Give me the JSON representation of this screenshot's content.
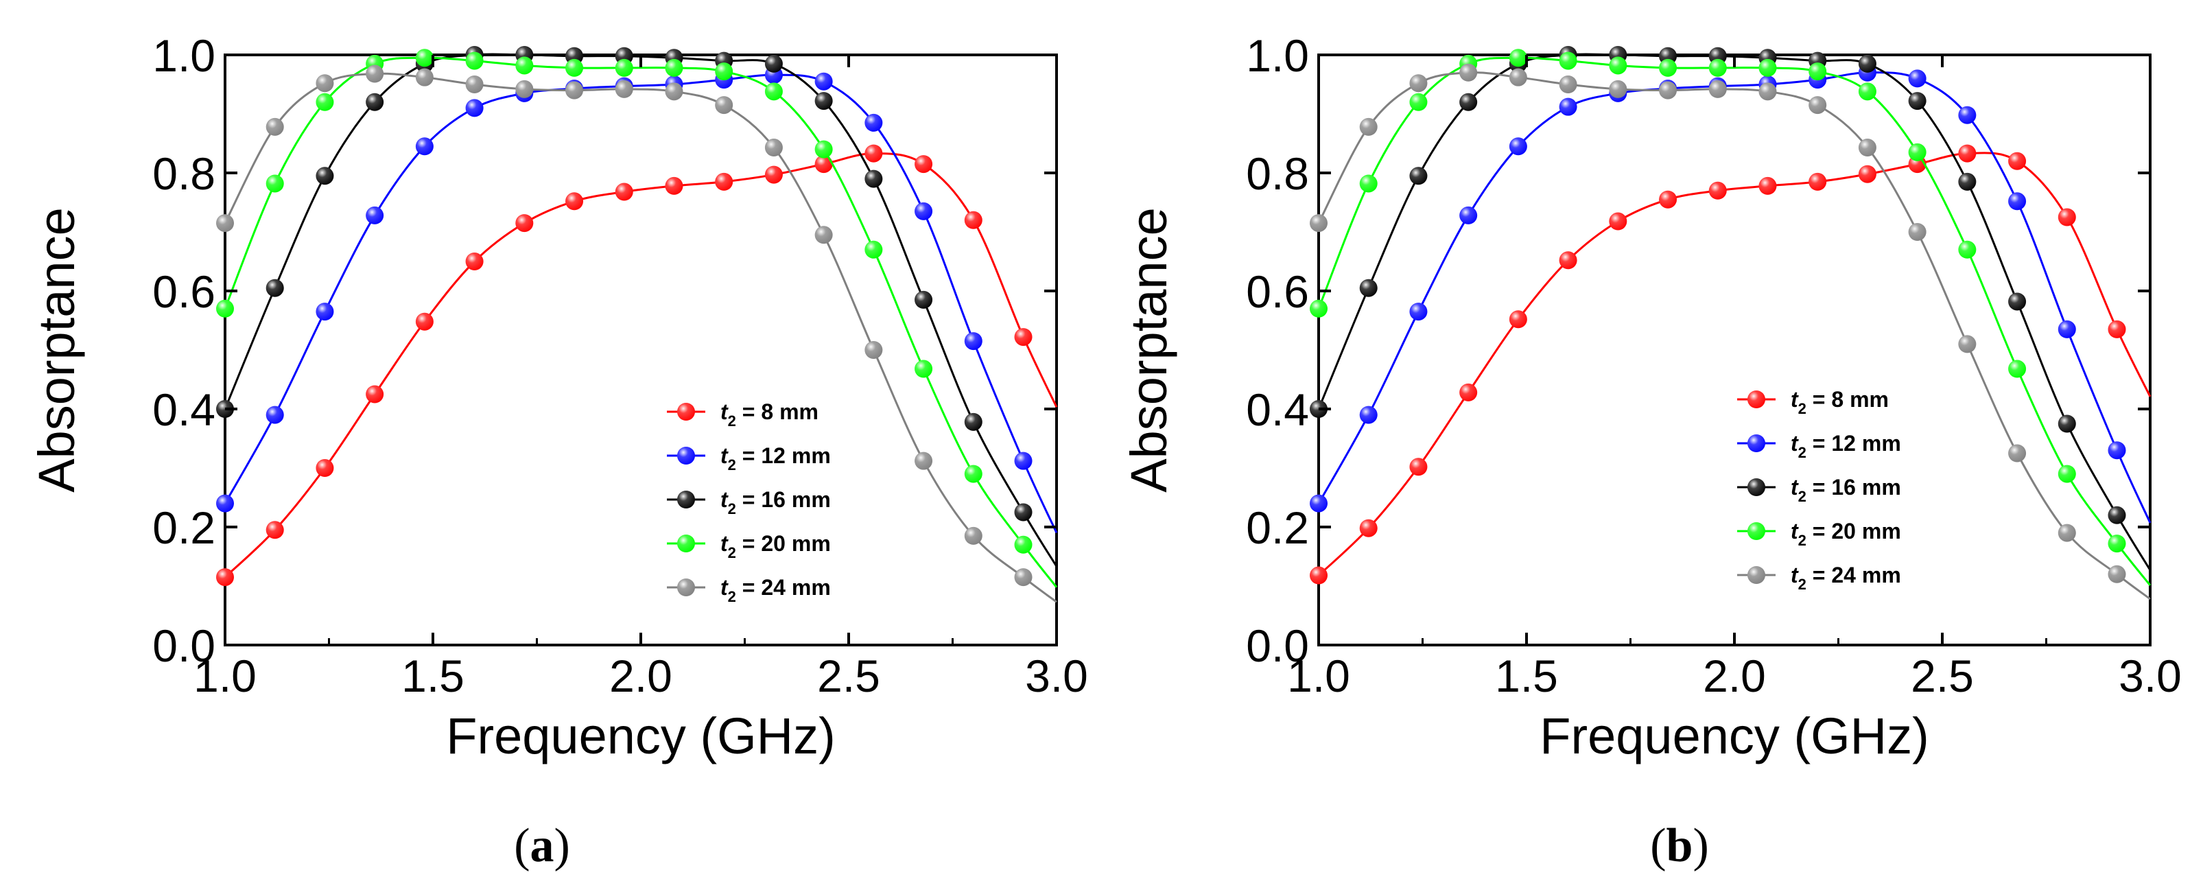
{
  "chart_data": [
    {
      "type": "line",
      "panel_label": "a",
      "xlabel": "Frequency (GHz)",
      "ylabel": "Absorptance",
      "xlim": [
        1.0,
        3.0
      ],
      "ylim": [
        0.0,
        1.0
      ],
      "x_ticks": [
        "1.0",
        "1.5",
        "2.0",
        "2.5",
        "3.0"
      ],
      "y_ticks": [
        "0.0",
        "0.2",
        "0.4",
        "0.6",
        "0.8",
        "1.0"
      ],
      "grid": false,
      "legend_position": "lower-right",
      "x": [
        1.0,
        1.12,
        1.24,
        1.36,
        1.48,
        1.6,
        1.72,
        1.84,
        1.96,
        2.08,
        2.2,
        2.32,
        2.44,
        2.56,
        2.68,
        2.8,
        2.92
      ],
      "series": [
        {
          "name": "t2 = 8 mm",
          "legend_var": "t",
          "legend_sub": "2",
          "legend_text": " = 8 mm",
          "color": "#ff0000",
          "values": [
            0.115,
            0.195,
            0.3,
            0.425,
            0.548,
            0.65,
            0.715,
            0.752,
            0.768,
            0.778,
            0.785,
            0.797,
            0.815,
            0.833,
            0.815,
            0.72,
            0.522
          ]
        },
        {
          "name": "t2 = 12 mm",
          "legend_var": "t",
          "legend_sub": "2",
          "legend_text": " = 12 mm",
          "color": "#0000ff",
          "values": [
            0.24,
            0.39,
            0.565,
            0.728,
            0.845,
            0.91,
            0.935,
            0.943,
            0.947,
            0.95,
            0.958,
            0.966,
            0.955,
            0.885,
            0.735,
            0.515,
            0.312
          ]
        },
        {
          "name": "t2 = 16 mm",
          "legend_var": "t",
          "legend_sub": "2",
          "legend_text": " = 16 mm",
          "color": "#000000",
          "values": [
            0.4,
            0.605,
            0.795,
            0.92,
            0.985,
            1.0,
            1.0,
            0.998,
            0.998,
            0.995,
            0.99,
            0.985,
            0.922,
            0.79,
            0.585,
            0.378,
            0.225
          ]
        },
        {
          "name": "t2 = 20 mm",
          "legend_var": "t",
          "legend_sub": "2",
          "legend_text": " = 20 mm",
          "color": "#00ff00",
          "values": [
            0.57,
            0.782,
            0.92,
            0.985,
            0.995,
            0.99,
            0.982,
            0.978,
            0.978,
            0.978,
            0.972,
            0.938,
            0.84,
            0.67,
            0.468,
            0.29,
            0.17
          ]
        },
        {
          "name": "t2 = 24 mm",
          "legend_var": "t",
          "legend_sub": "2",
          "legend_text": " = 24 mm",
          "color": "#808080",
          "values": [
            0.715,
            0.878,
            0.952,
            0.968,
            0.962,
            0.95,
            0.942,
            0.94,
            0.942,
            0.938,
            0.915,
            0.843,
            0.695,
            0.5,
            0.312,
            0.185,
            0.115
          ]
        }
      ]
    },
    {
      "type": "line",
      "panel_label": "b",
      "xlabel": "Frequency (GHz)",
      "ylabel": "Absorptance",
      "xlim": [
        1.0,
        3.0
      ],
      "ylim": [
        0.0,
        1.0
      ],
      "x_ticks": [
        "1.0",
        "1.5",
        "2.0",
        "2.5",
        "3.0"
      ],
      "y_ticks": [
        "0.0",
        "0.2",
        "0.4",
        "0.6",
        "0.8",
        "1.0"
      ],
      "grid": false,
      "legend_position": "lower-right",
      "x": [
        1.0,
        1.12,
        1.24,
        1.36,
        1.48,
        1.6,
        1.72,
        1.84,
        1.96,
        2.08,
        2.2,
        2.32,
        2.44,
        2.56,
        2.68,
        2.8,
        2.92
      ],
      "series": [
        {
          "name": "t2 = 8 mm",
          "legend_var": "t",
          "legend_sub": "2",
          "legend_text": " =  8 mm",
          "color": "#ff0000",
          "values": [
            0.118,
            0.198,
            0.302,
            0.428,
            0.552,
            0.652,
            0.718,
            0.755,
            0.77,
            0.778,
            0.785,
            0.798,
            0.815,
            0.833,
            0.82,
            0.725,
            0.535
          ]
        },
        {
          "name": "t2 = 12 mm",
          "legend_var": "t",
          "legend_sub": "2",
          "legend_text": " = 12 mm",
          "color": "#0000ff",
          "values": [
            0.24,
            0.39,
            0.565,
            0.728,
            0.845,
            0.912,
            0.935,
            0.943,
            0.947,
            0.95,
            0.958,
            0.97,
            0.96,
            0.898,
            0.752,
            0.535,
            0.33
          ]
        },
        {
          "name": "t2 = 16 mm",
          "legend_var": "t",
          "legend_sub": "2",
          "legend_text": " = 16 mm",
          "color": "#000000",
          "values": [
            0.4,
            0.605,
            0.795,
            0.92,
            0.985,
            1.0,
            1.0,
            0.998,
            0.998,
            0.995,
            0.99,
            0.985,
            0.922,
            0.785,
            0.582,
            0.375,
            0.22
          ]
        },
        {
          "name": "t2 = 20 mm",
          "legend_var": "t",
          "legend_sub": "2",
          "legend_text": " = 20 mm",
          "color": "#00ff00",
          "values": [
            0.57,
            0.782,
            0.92,
            0.985,
            0.995,
            0.99,
            0.982,
            0.978,
            0.978,
            0.978,
            0.972,
            0.938,
            0.835,
            0.67,
            0.468,
            0.29,
            0.172
          ]
        },
        {
          "name": "t2 = 24 mm",
          "legend_var": "t",
          "legend_sub": "2",
          "legend_text": " = 24 mm",
          "color": "#808080",
          "values": [
            0.715,
            0.878,
            0.952,
            0.97,
            0.962,
            0.95,
            0.942,
            0.94,
            0.942,
            0.938,
            0.915,
            0.843,
            0.7,
            0.51,
            0.325,
            0.19,
            0.12
          ]
        }
      ]
    }
  ]
}
